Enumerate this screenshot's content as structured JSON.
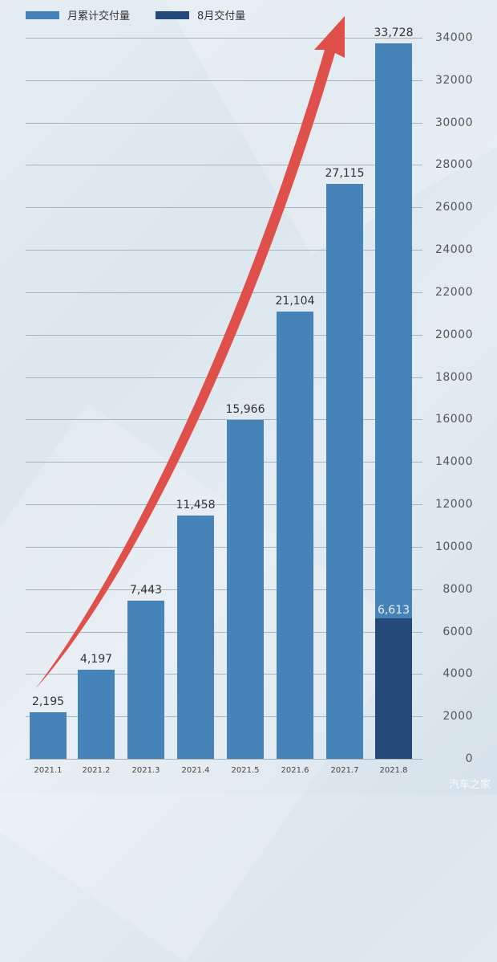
{
  "legend": [
    {
      "label": "月累计交付量",
      "color": "#4583b9"
    },
    {
      "label": "8月交付量",
      "color": "#254a7a"
    }
  ],
  "watermark": "汽车之家",
  "chart_data": {
    "type": "bar",
    "title": "",
    "xlabel": "",
    "ylabel": "",
    "categories": [
      "2021.1",
      "2021.2",
      "2021.3",
      "2021.4",
      "2021.5",
      "2021.6",
      "2021.7",
      "2021.8"
    ],
    "series": [
      {
        "name": "月累计交付量",
        "color": "#4583b9",
        "values": [
          2195,
          4197,
          7443,
          11458,
          15966,
          21104,
          27115,
          33728
        ]
      },
      {
        "name": "8月交付量",
        "color": "#254a7a",
        "values": [
          null,
          null,
          null,
          null,
          null,
          null,
          null,
          6613
        ]
      }
    ],
    "data_labels": [
      "2,195",
      "4,197",
      "7,443",
      "11,458",
      "15,966",
      "21,104",
      "27,115",
      "33,728"
    ],
    "segment_label": "6,613",
    "ylim": [
      0,
      34000
    ],
    "yticks": [
      0,
      2000,
      4000,
      6000,
      8000,
      10000,
      12000,
      14000,
      16000,
      18000,
      20000,
      22000,
      24000,
      26000,
      28000,
      30000,
      32000,
      34000
    ],
    "y_axis_position": "right",
    "grid": true,
    "legend_position": "top-left",
    "annotation": "red upward trend arrow"
  }
}
